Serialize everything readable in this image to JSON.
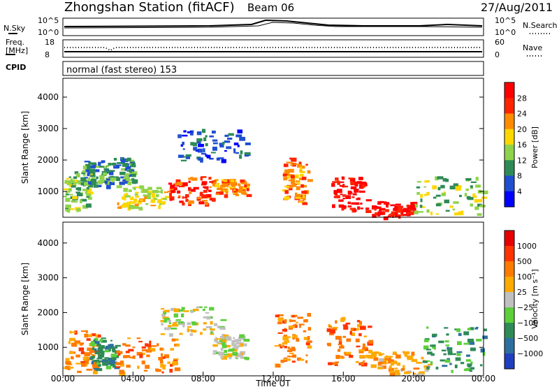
{
  "header": {
    "station": "Zhongshan Station (fitACF)",
    "beam": "Beam 06",
    "date": "27/Aug/2011"
  },
  "panels": {
    "nsky": {
      "left_label": "N.Sky",
      "right_label": "N.Search",
      "ticks_left": [
        "10^5",
        "10^0"
      ],
      "ticks_right": [
        "10^5",
        "10^0"
      ]
    },
    "freq": {
      "left_label_line1": "Freq.",
      "left_label_line2": "[MHz]",
      "right_label": "Nave",
      "ticks_left": [
        "18",
        "8"
      ],
      "ticks_right": [
        "60",
        "0"
      ]
    },
    "cpid": {
      "left_label": "CPID",
      "text": "normal (fast stereo) 153"
    }
  },
  "chart_data": [
    {
      "type": "heatmap",
      "name": "power",
      "ylabel": "Slant Range [km]",
      "ylim": [
        180,
        4600
      ],
      "yticks": [
        "1000",
        "2000",
        "3000",
        "4000"
      ],
      "colorbar_label": "Power [dB]",
      "colorbar_ticks": [
        "4",
        "8",
        "12",
        "16",
        "20",
        "24",
        "28"
      ],
      "colors": [
        "#0000ff",
        "#1f4fd0",
        "#2e8b57",
        "#8fd34a",
        "#ffd700",
        "#ff8c00",
        "#ff2400",
        "#ff0000"
      ],
      "blobs": [
        {
          "t": [
            0.0,
            1.5
          ],
          "r": [
            400,
            1700
          ],
          "level": 3
        },
        {
          "t": [
            1.0,
            2.5
          ],
          "r": [
            1200,
            2000
          ],
          "level": 2
        },
        {
          "t": [
            2.5,
            4.0
          ],
          "r": [
            1300,
            2100
          ],
          "level": 2
        },
        {
          "t": [
            3.0,
            6.0
          ],
          "r": [
            500,
            1200
          ],
          "level": 4
        },
        {
          "t": [
            6.0,
            8.5
          ],
          "r": [
            600,
            1500
          ],
          "level": 6
        },
        {
          "t": [
            8.5,
            10.5
          ],
          "r": [
            900,
            1400
          ],
          "level": 5
        },
        {
          "t": [
            6.5,
            10.5
          ],
          "r": [
            2000,
            3000
          ],
          "level": 1
        },
        {
          "t": [
            12.5,
            14.0
          ],
          "r": [
            600,
            2100
          ],
          "level": 5
        },
        {
          "t": [
            15.3,
            17.3
          ],
          "r": [
            400,
            1500
          ],
          "level": 7
        },
        {
          "t": [
            17.5,
            20.0
          ],
          "r": [
            200,
            700
          ],
          "level": 7
        },
        {
          "t": [
            20.0,
            24.0
          ],
          "r": [
            300,
            1500
          ],
          "level": 3
        }
      ]
    },
    {
      "type": "heatmap",
      "name": "velocity",
      "ylabel": "Slant Range [km]",
      "xlabel": "Time UT",
      "ylim": [
        180,
        4600
      ],
      "yticks": [
        "1000",
        "2000",
        "3000",
        "4000"
      ],
      "xticks": [
        "00:00",
        "04:00",
        "08:00",
        "12:00",
        "16:00",
        "20:00",
        "00:00"
      ],
      "colorbar_label": "Velocity [m s⁻¹]",
      "colorbar_ticks": [
        "1000",
        "500",
        "100",
        "25",
        "−25",
        "−100",
        "−500",
        "−1000"
      ],
      "colors": [
        "#1f3fbf",
        "#2d6fa0",
        "#2e8b57",
        "#5ccf3a",
        "#c0c0c0",
        "#ffaa00",
        "#ff7a00",
        "#ff3300",
        "#e60000"
      ],
      "blobs": [
        {
          "t": [
            0.0,
            2.0
          ],
          "r": [
            300,
            1500
          ],
          "level": 6
        },
        {
          "t": [
            1.5,
            3.0
          ],
          "r": [
            400,
            1300
          ],
          "level": 2
        },
        {
          "t": [
            3.0,
            6.5
          ],
          "r": [
            300,
            1300
          ],
          "level": 6
        },
        {
          "t": [
            5.5,
            9.0
          ],
          "r": [
            1400,
            2200
          ],
          "level": 4
        },
        {
          "t": [
            8.5,
            10.5
          ],
          "r": [
            700,
            1400
          ],
          "level": 4
        },
        {
          "t": [
            12.0,
            14.0
          ],
          "r": [
            500,
            2000
          ],
          "level": 6
        },
        {
          "t": [
            15.0,
            17.5
          ],
          "r": [
            500,
            1900
          ],
          "level": 6
        },
        {
          "t": [
            17.5,
            21.0
          ],
          "r": [
            200,
            900
          ],
          "level": 5
        },
        {
          "t": [
            20.5,
            24.0
          ],
          "r": [
            300,
            1600
          ],
          "level": 2
        }
      ]
    }
  ]
}
